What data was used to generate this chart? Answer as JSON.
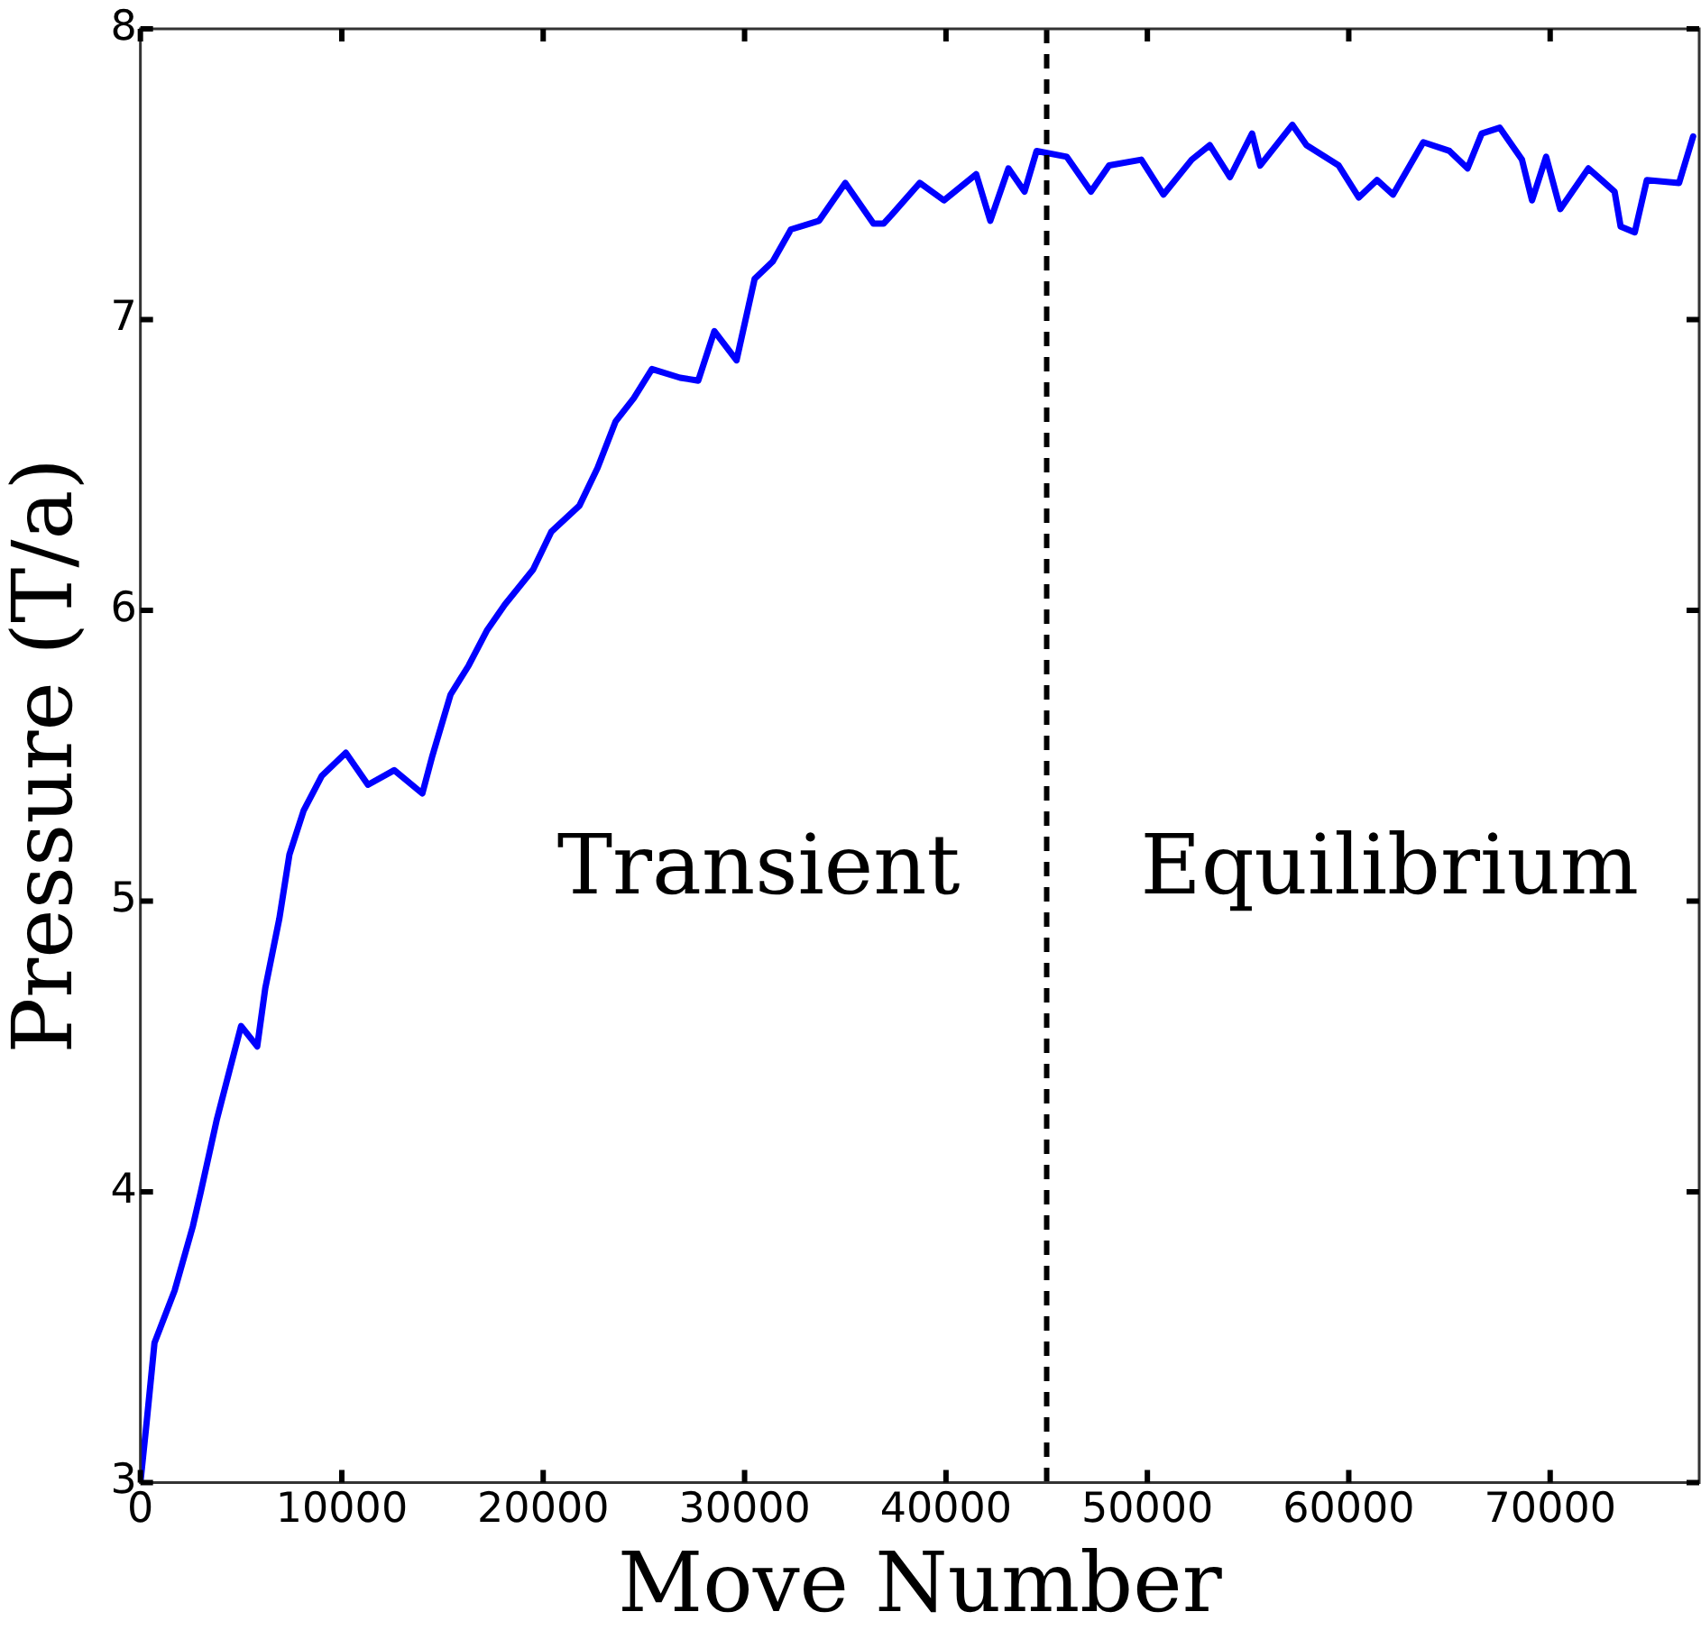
{
  "chart_data": {
    "type": "line",
    "xlabel": "Move Number",
    "ylabel": "Pressure (T/a)",
    "xlim": [
      0,
      77400
    ],
    "ylim": [
      3,
      8
    ],
    "xticks": [
      0,
      10000,
      20000,
      30000,
      40000,
      50000,
      60000,
      70000
    ],
    "yticks": [
      3,
      4,
      5,
      6,
      7,
      8
    ],
    "grid": false,
    "legend": false,
    "marker": "none",
    "line_style": "solid",
    "ref_lines": [
      {
        "axis": "x",
        "value": 45000,
        "color": "#000000",
        "line_style": "dashed"
      }
    ],
    "annotations": [
      "Transient",
      "Equilibrium"
    ],
    "series": [
      {
        "color": "#0000ff",
        "x": [
          0,
          300,
          700,
          1700,
          2600,
          3000,
          3800,
          4400,
          5000,
          5800,
          6200,
          6900,
          7400,
          8100,
          9000,
          10200,
          11300,
          12600,
          14000,
          14500,
          15400,
          16300,
          17200,
          18100,
          19500,
          20400,
          21800,
          22700,
          23600,
          24500,
          25400,
          26800,
          27700,
          28500,
          29600,
          30500,
          31400,
          32300,
          33700,
          35000,
          36400,
          36900,
          37300,
          38700,
          39900,
          41500,
          42200,
          43100,
          43900,
          44500,
          46000,
          47200,
          48100,
          49700,
          50800,
          52200,
          53100,
          54100,
          55200,
          55600,
          57200,
          57900,
          59500,
          60500,
          61400,
          62200,
          63700,
          65000,
          65900,
          66600,
          67500,
          68600,
          69100,
          69800,
          70500,
          71900,
          73200,
          73500,
          74200,
          74800,
          76400,
          77100
        ],
        "values": [
          3.0,
          3.2,
          3.48,
          3.66,
          3.88,
          4.0,
          4.25,
          4.41,
          4.57,
          4.5,
          4.7,
          4.94,
          5.16,
          5.31,
          5.43,
          5.51,
          5.4,
          5.45,
          5.37,
          5.5,
          5.71,
          5.81,
          5.93,
          6.02,
          6.14,
          6.27,
          6.36,
          6.49,
          6.65,
          6.73,
          6.83,
          6.8,
          6.79,
          6.96,
          6.86,
          7.14,
          7.2,
          7.31,
          7.34,
          7.47,
          7.33,
          7.33,
          7.36,
          7.47,
          7.41,
          7.5,
          7.34,
          7.52,
          7.44,
          7.58,
          7.56,
          7.44,
          7.53,
          7.55,
          7.43,
          7.55,
          7.6,
          7.49,
          7.64,
          7.53,
          7.67,
          7.6,
          7.53,
          7.42,
          7.48,
          7.43,
          7.61,
          7.58,
          7.52,
          7.64,
          7.66,
          7.55,
          7.41,
          7.56,
          7.38,
          7.52,
          7.44,
          7.32,
          7.3,
          7.48,
          7.47,
          7.63
        ]
      }
    ]
  }
}
